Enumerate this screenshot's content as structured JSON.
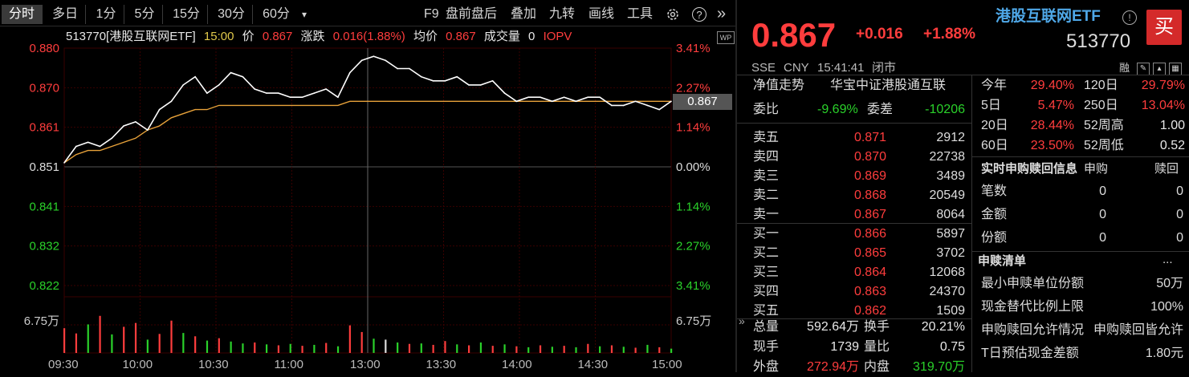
{
  "toolbar": {
    "tabs": [
      {
        "label": "分时",
        "active": true
      },
      {
        "label": "多日",
        "active": false
      },
      {
        "label": "1分",
        "active": false
      },
      {
        "label": "5分",
        "active": false
      },
      {
        "label": "15分",
        "active": false
      },
      {
        "label": "30分",
        "active": false
      },
      {
        "label": "60分",
        "active": false
      }
    ],
    "dropdown_glyph": "▾",
    "tools": [
      "F9",
      "盘前盘后",
      "叠加",
      "九转",
      "画线",
      "工具"
    ],
    "settings_icon": "gear-icon",
    "help_icon": "question-icon",
    "collapse_icon": "double-chevron-right-icon",
    "help_glyph": "?",
    "collapse_glyph": "»"
  },
  "infobar": {
    "code_name": "513770[港股互联网ETF]",
    "time": "15:00",
    "price_label": "价",
    "price": "0.867",
    "change_label": "涨跌",
    "change": "0.016(1.88%)",
    "avg_label": "均价",
    "avg": "0.867",
    "volume_label": "成交量",
    "volume": "0",
    "iopv_label": "IOPV",
    "wp_badge": "WP"
  },
  "chart": {
    "left_ticks": [
      "0.880",
      "0.870",
      "0.861",
      "0.851",
      "0.841",
      "0.832",
      "0.822"
    ],
    "right_ticks": [
      "3.41%",
      "2.27%",
      "1.14%",
      "0.00%",
      "1.14%",
      "2.27%",
      "3.41%"
    ],
    "right_tick_colors": [
      "#ff3d3d",
      "#ff3d3d",
      "#ff3d3d",
      "#dddddd",
      "#2ad12a",
      "#2ad12a",
      "#2ad12a"
    ],
    "volume_tick_left": "6.75万",
    "volume_tick_right": "6.75万",
    "time_labels": [
      "09:30",
      "10:00",
      "10:30",
      "11:00",
      "13:00",
      "13:30",
      "14:00",
      "14:30",
      "15:00"
    ],
    "current_price_tag": "0.867",
    "collapse_arrow": "»"
  },
  "chart_data": {
    "type": "line",
    "title": "",
    "xlabel": "",
    "ylabel": "",
    "prev_close": 0.851,
    "ylim": [
      0.822,
      0.88
    ],
    "x_time_ticks": [
      "09:30",
      "10:00",
      "10:30",
      "11:00",
      "13:00",
      "13:30",
      "14:00",
      "14:30",
      "15:00"
    ],
    "series": [
      {
        "name": "价格",
        "color": "#ffffff",
        "step_minutes": 5,
        "values": [
          0.852,
          0.856,
          0.857,
          0.856,
          0.858,
          0.861,
          0.862,
          0.86,
          0.865,
          0.867,
          0.871,
          0.873,
          0.869,
          0.871,
          0.874,
          0.873,
          0.87,
          0.869,
          0.869,
          0.868,
          0.868,
          0.869,
          0.87,
          0.868,
          0.874,
          0.877,
          0.878,
          0.877,
          0.875,
          0.875,
          0.873,
          0.872,
          0.872,
          0.873,
          0.871,
          0.871,
          0.872,
          0.869,
          0.867,
          0.868,
          0.868,
          0.867,
          0.868,
          0.867,
          0.868,
          0.868,
          0.866,
          0.866,
          0.867,
          0.866,
          0.865,
          0.867
        ]
      },
      {
        "name": "均价",
        "color": "#e8a23a",
        "step_minutes": 5,
        "values": [
          0.852,
          0.854,
          0.855,
          0.855,
          0.856,
          0.857,
          0.858,
          0.86,
          0.861,
          0.863,
          0.864,
          0.865,
          0.865,
          0.866,
          0.866,
          0.866,
          0.866,
          0.866,
          0.866,
          0.866,
          0.866,
          0.866,
          0.866,
          0.866,
          0.867,
          0.867,
          0.867,
          0.867,
          0.867,
          0.867,
          0.867,
          0.867,
          0.867,
          0.867,
          0.867,
          0.867,
          0.867,
          0.867,
          0.867,
          0.867,
          0.867,
          0.867,
          0.867,
          0.867,
          0.867,
          0.867,
          0.867,
          0.867,
          0.867,
          0.867,
          0.867,
          0.867
        ]
      }
    ],
    "volume": {
      "unit": "万",
      "tick": 6.75,
      "step_minutes": 5,
      "values": [
        5.2,
        4.1,
        6.0,
        7.8,
        3.9,
        5.5,
        6.3,
        2.8,
        4.0,
        6.8,
        4.2,
        3.5,
        2.6,
        3.1,
        2.4,
        2.0,
        2.2,
        1.8,
        1.6,
        1.9,
        1.5,
        1.7,
        2.1,
        1.4,
        5.8,
        4.4,
        3.0,
        2.8,
        2.2,
        1.9,
        2.0,
        1.7,
        2.5,
        1.8,
        1.6,
        2.2,
        1.5,
        1.8,
        1.4,
        1.2,
        1.6,
        1.3,
        1.5,
        1.2,
        1.9,
        1.4,
        1.6,
        1.3,
        1.1,
        1.7,
        1.2,
        0.9
      ],
      "colors": [
        "red",
        "red",
        "green",
        "red",
        "green",
        "red",
        "red",
        "green",
        "red",
        "red",
        "green",
        "red",
        "green",
        "red",
        "green",
        "green",
        "red",
        "green",
        "red",
        "green",
        "red",
        "green",
        "red",
        "green",
        "red",
        "red",
        "green",
        "white",
        "green",
        "red",
        "green",
        "red",
        "red",
        "green",
        "red",
        "green",
        "red",
        "green",
        "red",
        "green",
        "red",
        "green",
        "red",
        "green",
        "red",
        "green",
        "red",
        "green",
        "red",
        "green",
        "red",
        "green"
      ]
    },
    "grid": true
  },
  "header": {
    "price": "0.867",
    "change": "+0.016",
    "change_pct": "+1.88%",
    "name": "港股互联网ETF",
    "code": "513770",
    "exchange": "SSE",
    "currency": "CNY",
    "clock": "15:41:41",
    "status": "闭市",
    "buy_button": "买",
    "info_icon": "info-icon",
    "margin_badge": "融"
  },
  "nav": {
    "label": "净值走势",
    "index_name": "华宝中证港股通互联"
  },
  "order_book": {
    "weibi_label": "委比",
    "weibi": "-9.69%",
    "weicha_label": "委差",
    "weicha": "-10206",
    "asks": [
      {
        "label": "卖五",
        "price": "0.871",
        "vol": "2912"
      },
      {
        "label": "卖四",
        "price": "0.870",
        "vol": "22738"
      },
      {
        "label": "卖三",
        "price": "0.869",
        "vol": "3489"
      },
      {
        "label": "卖二",
        "price": "0.868",
        "vol": "20549"
      },
      {
        "label": "卖一",
        "price": "0.867",
        "vol": "8064"
      }
    ],
    "bids": [
      {
        "label": "买一",
        "price": "0.866",
        "vol": "5897"
      },
      {
        "label": "买二",
        "price": "0.865",
        "vol": "3702"
      },
      {
        "label": "买三",
        "price": "0.864",
        "vol": "12068"
      },
      {
        "label": "买四",
        "price": "0.863",
        "vol": "24370"
      },
      {
        "label": "买五",
        "price": "0.862",
        "vol": "1509"
      }
    ]
  },
  "stats": {
    "total_label": "总量",
    "total": "592.64万",
    "turnover_label": "换手",
    "turnover": "20.21%",
    "current_label": "现手",
    "current": "1739",
    "vol_ratio_label": "量比",
    "vol_ratio": "0.75",
    "outer_label": "外盘",
    "outer": "272.94万",
    "inner_label": "内盘",
    "inner": "319.70万"
  },
  "perf": [
    {
      "l1": "今年",
      "v1": "29.40%",
      "l2": "120日",
      "v2": "29.79%"
    },
    {
      "l1": "5日",
      "v1": "5.47%",
      "l2": "250日",
      "v2": "13.04%"
    },
    {
      "l1": "20日",
      "v1": "28.44%",
      "l2": "52周高",
      "v2": "1.00"
    },
    {
      "l1": "60日",
      "v1": "23.50%",
      "l2": "52周低",
      "v2": "0.52"
    }
  ],
  "redemption": {
    "title": "实时申购赎回信息",
    "col_buy": "申购",
    "col_redeem": "赎回",
    "rows": [
      {
        "label": "笔数",
        "buy": "0",
        "redeem": "0"
      },
      {
        "label": "金额",
        "buy": "0",
        "redeem": "0"
      },
      {
        "label": "份额",
        "buy": "0",
        "redeem": "0"
      }
    ]
  },
  "redemption_list": {
    "title": "申赎清单",
    "more": "...",
    "rows": [
      {
        "label": "最小申赎单位份额",
        "value": "50万"
      },
      {
        "label": "现金替代比例上限",
        "value": "100%"
      },
      {
        "label": "申购赎回允许情况",
        "value": "申购赎回皆允许"
      },
      {
        "label": "T日预估现金差额",
        "value": "1.80元"
      }
    ]
  }
}
